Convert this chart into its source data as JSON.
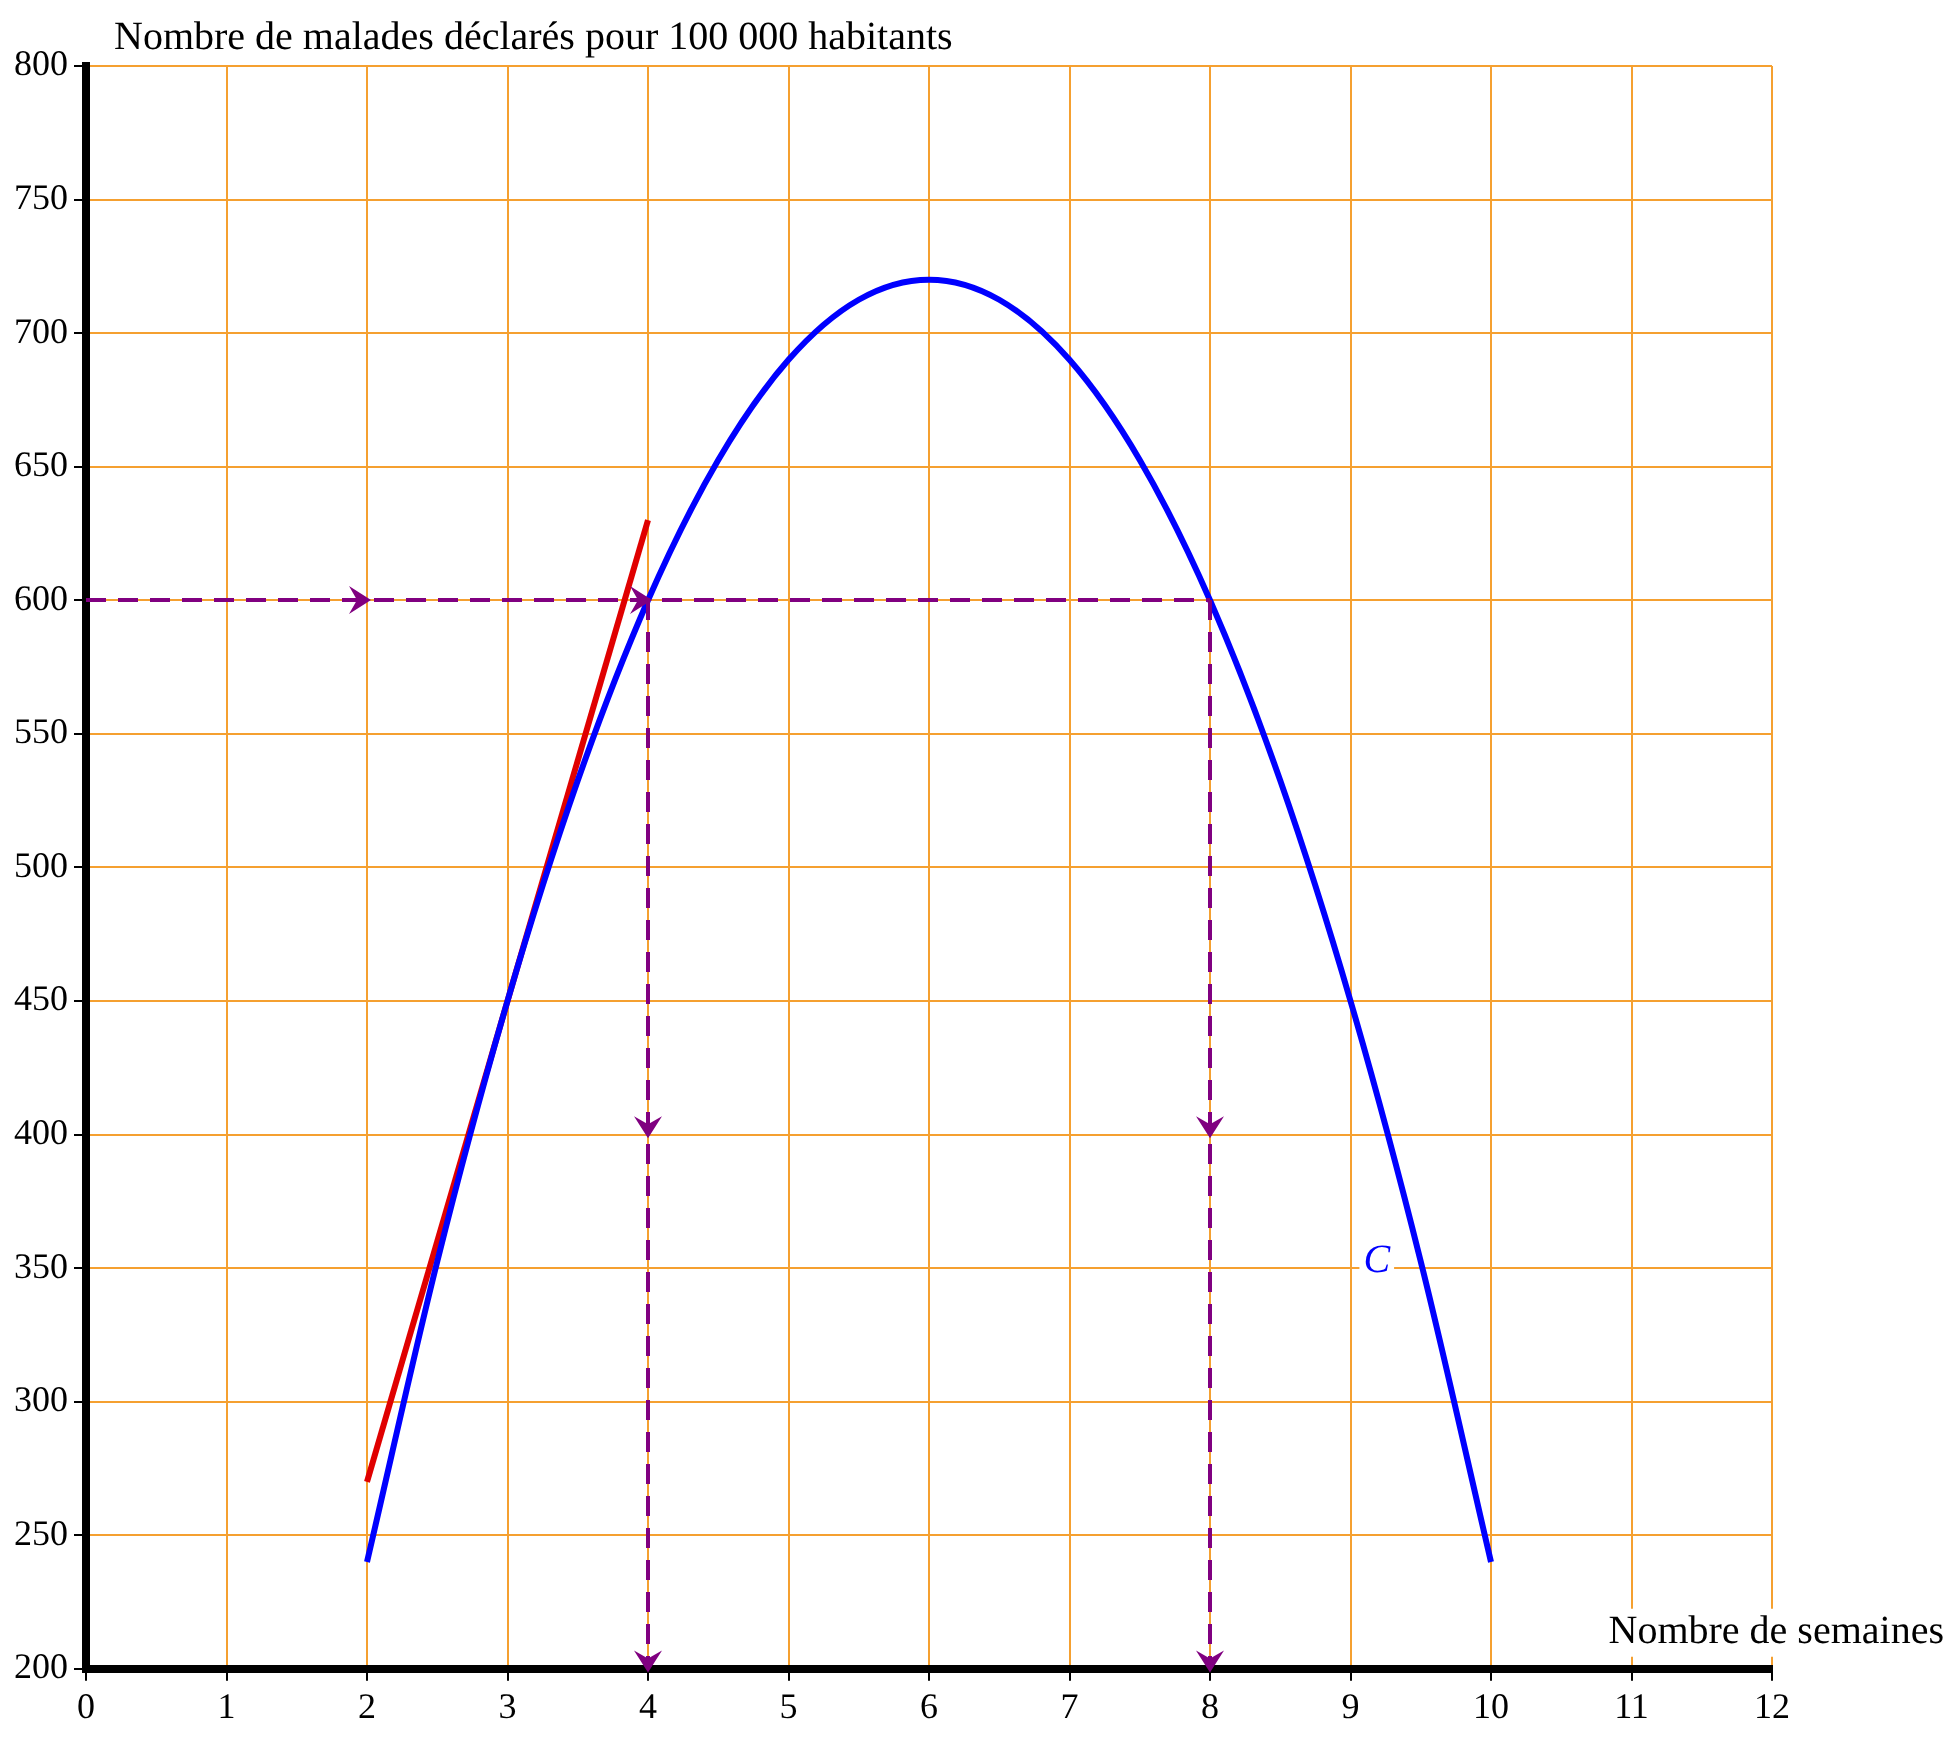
{
  "chart_data": {
    "type": "line",
    "xlabel": "Nombre de semaines",
    "ylabel": "Nombre de malades déclarés pour 100 000 habitants",
    "xlim": [
      0,
      12
    ],
    "ylim": [
      200,
      800
    ],
    "xticks": [
      0,
      1,
      2,
      3,
      4,
      5,
      6,
      7,
      8,
      9,
      10,
      11,
      12
    ],
    "yticks": [
      200,
      250,
      300,
      350,
      400,
      450,
      500,
      550,
      600,
      650,
      700,
      750,
      800
    ],
    "grid": true,
    "legend": false,
    "marker": "none",
    "series": [
      {
        "color": "#0000ff",
        "x": [
          2,
          2.5,
          3,
          3.5,
          4,
          4.5,
          5,
          5.5,
          6,
          6.5,
          7,
          7.5,
          8,
          8.5,
          9,
          9.5,
          10
        ],
        "values": [
          240,
          352.5,
          450,
          532.5,
          600,
          652.5,
          690,
          712.5,
          720,
          712.5,
          690,
          652.5,
          600,
          532.5,
          450,
          352.5,
          240
        ]
      },
      {
        "color": "#e00000",
        "x": [
          2,
          4
        ],
        "values": [
          270,
          630
        ]
      }
    ],
    "ref_lines": [
      {
        "axis": "y",
        "value": 600,
        "color": "#800080",
        "line_style": "dashed"
      },
      {
        "axis": "x",
        "value": 4,
        "color": "#800080",
        "line_style": "dashed"
      },
      {
        "axis": "x",
        "value": 8,
        "color": "#800080",
        "line_style": "dashed"
      }
    ],
    "annotations": [
      "C"
    ]
  }
}
